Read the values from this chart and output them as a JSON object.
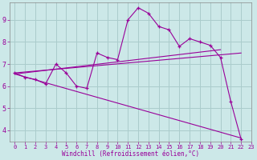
{
  "background_color": "#cce8e8",
  "grid_color": "#aacccc",
  "line_color": "#990099",
  "xlabel": "Windchill (Refroidissement éolien,°C)",
  "xlim": [
    -0.5,
    23
  ],
  "ylim": [
    3.5,
    9.8
  ],
  "yticks": [
    4,
    5,
    6,
    7,
    8,
    9
  ],
  "xticks": [
    0,
    1,
    2,
    3,
    4,
    5,
    6,
    7,
    8,
    9,
    10,
    11,
    12,
    13,
    14,
    15,
    16,
    17,
    18,
    19,
    20,
    21,
    22,
    23
  ],
  "series_main": {
    "x": [
      0,
      1,
      2,
      3,
      4,
      5,
      6,
      7,
      8,
      9,
      10,
      11,
      12,
      13,
      14,
      15,
      16,
      17,
      18,
      19,
      20,
      21,
      22
    ],
    "y": [
      6.6,
      6.4,
      6.3,
      6.1,
      7.0,
      6.6,
      6.0,
      5.9,
      7.5,
      7.3,
      7.2,
      9.0,
      9.55,
      9.3,
      8.7,
      8.55,
      7.8,
      8.15,
      8.0,
      7.85,
      7.3,
      5.3,
      3.6
    ]
  },
  "series_reg1": {
    "x": [
      0,
      22
    ],
    "y": [
      6.6,
      7.5
    ]
  },
  "series_reg2": {
    "x": [
      0,
      20
    ],
    "y": [
      6.55,
      7.65
    ]
  },
  "series_reg3": {
    "x": [
      0,
      22
    ],
    "y": [
      6.55,
      3.65
    ]
  }
}
